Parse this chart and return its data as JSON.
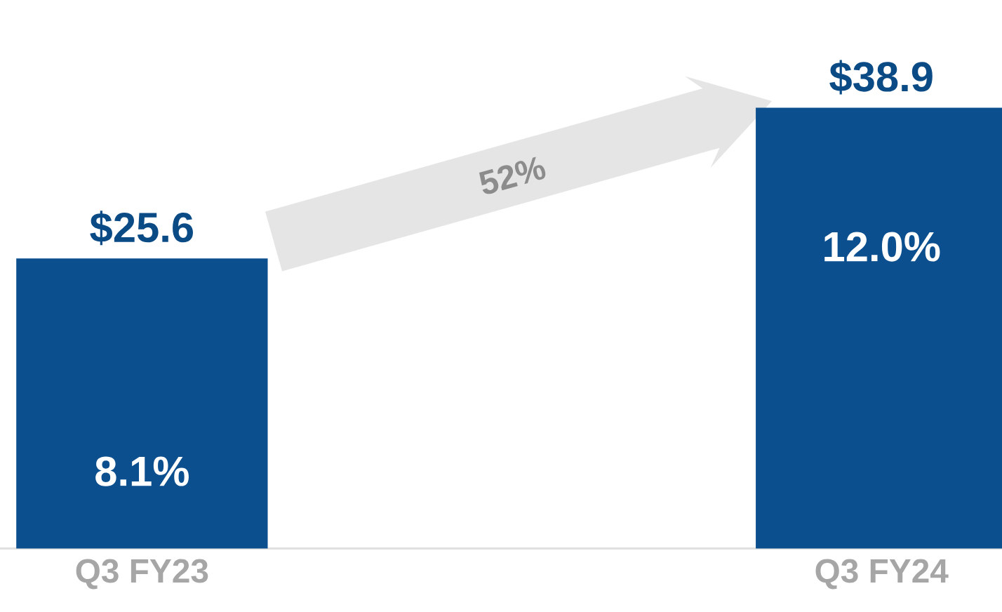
{
  "chart_data": {
    "type": "bar",
    "categories": [
      "Q3 FY23",
      "Q3 FY24"
    ],
    "values": [
      25.6,
      38.9
    ],
    "value_labels": [
      "$25.6",
      "$38.9"
    ],
    "color": "#0b4f8f",
    "tick_labels": "x",
    "annotations": [
      "8.1%",
      "12.0%",
      "52%"
    ]
  }
}
